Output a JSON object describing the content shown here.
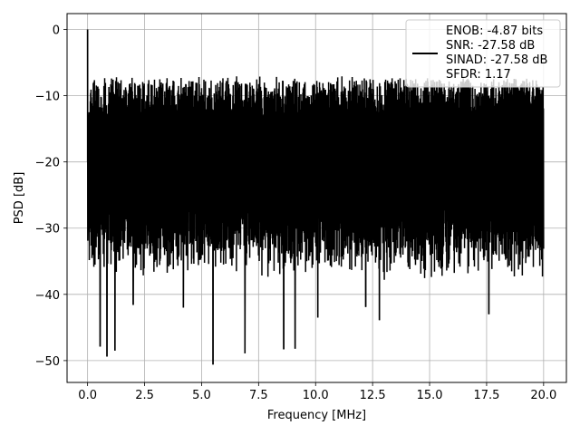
{
  "chart_data": {
    "type": "line",
    "title": "",
    "xlabel": "Frequency [MHz]",
    "ylabel": "PSD [dB]",
    "xlim": [
      -0.9,
      21.0
    ],
    "ylim": [
      -53.3,
      2.4
    ],
    "xticks": [
      0.0,
      2.5,
      5.0,
      7.5,
      10.0,
      12.5,
      15.0,
      17.5,
      20.0
    ],
    "xtick_labels": [
      "0.0",
      "2.5",
      "5.0",
      "7.5",
      "10.0",
      "12.5",
      "15.0",
      "17.5",
      "20.0"
    ],
    "yticks": [
      0,
      -10,
      -20,
      -30,
      -40,
      -50
    ],
    "ytick_labels": [
      "0",
      "−10",
      "−20",
      "−30",
      "−40",
      "−50"
    ],
    "grid": true,
    "legend_position": "top-right",
    "legend": [
      "ENOB: -4.87 bits",
      "SNR: -27.58 dB",
      "SINAD: -27.58 dB",
      "SFDR: 1.17"
    ],
    "series": [
      {
        "color": "#000000",
        "description": "dense noise floor PSD spanning 0 to 20 MHz",
        "peak": {
          "x": 0.0,
          "y": 0.0
        },
        "upper_envelope_y": [
          -8,
          -7
        ],
        "lower_envelope_y": [
          -38,
          -30
        ],
        "deep_nulls": [
          {
            "x": 0.55,
            "y": -47.9
          },
          {
            "x": 0.85,
            "y": -49.4
          },
          {
            "x": 1.2,
            "y": -48.5
          },
          {
            "x": 2.0,
            "y": -41.6
          },
          {
            "x": 4.2,
            "y": -42.0
          },
          {
            "x": 5.5,
            "y": -50.6
          },
          {
            "x": 6.9,
            "y": -48.9
          },
          {
            "x": 8.6,
            "y": -48.3
          },
          {
            "x": 9.1,
            "y": -48.2
          },
          {
            "x": 10.1,
            "y": -43.5
          },
          {
            "x": 12.2,
            "y": -41.9
          },
          {
            "x": 12.8,
            "y": -43.9
          },
          {
            "x": 17.6,
            "y": -43.0
          }
        ]
      }
    ]
  }
}
